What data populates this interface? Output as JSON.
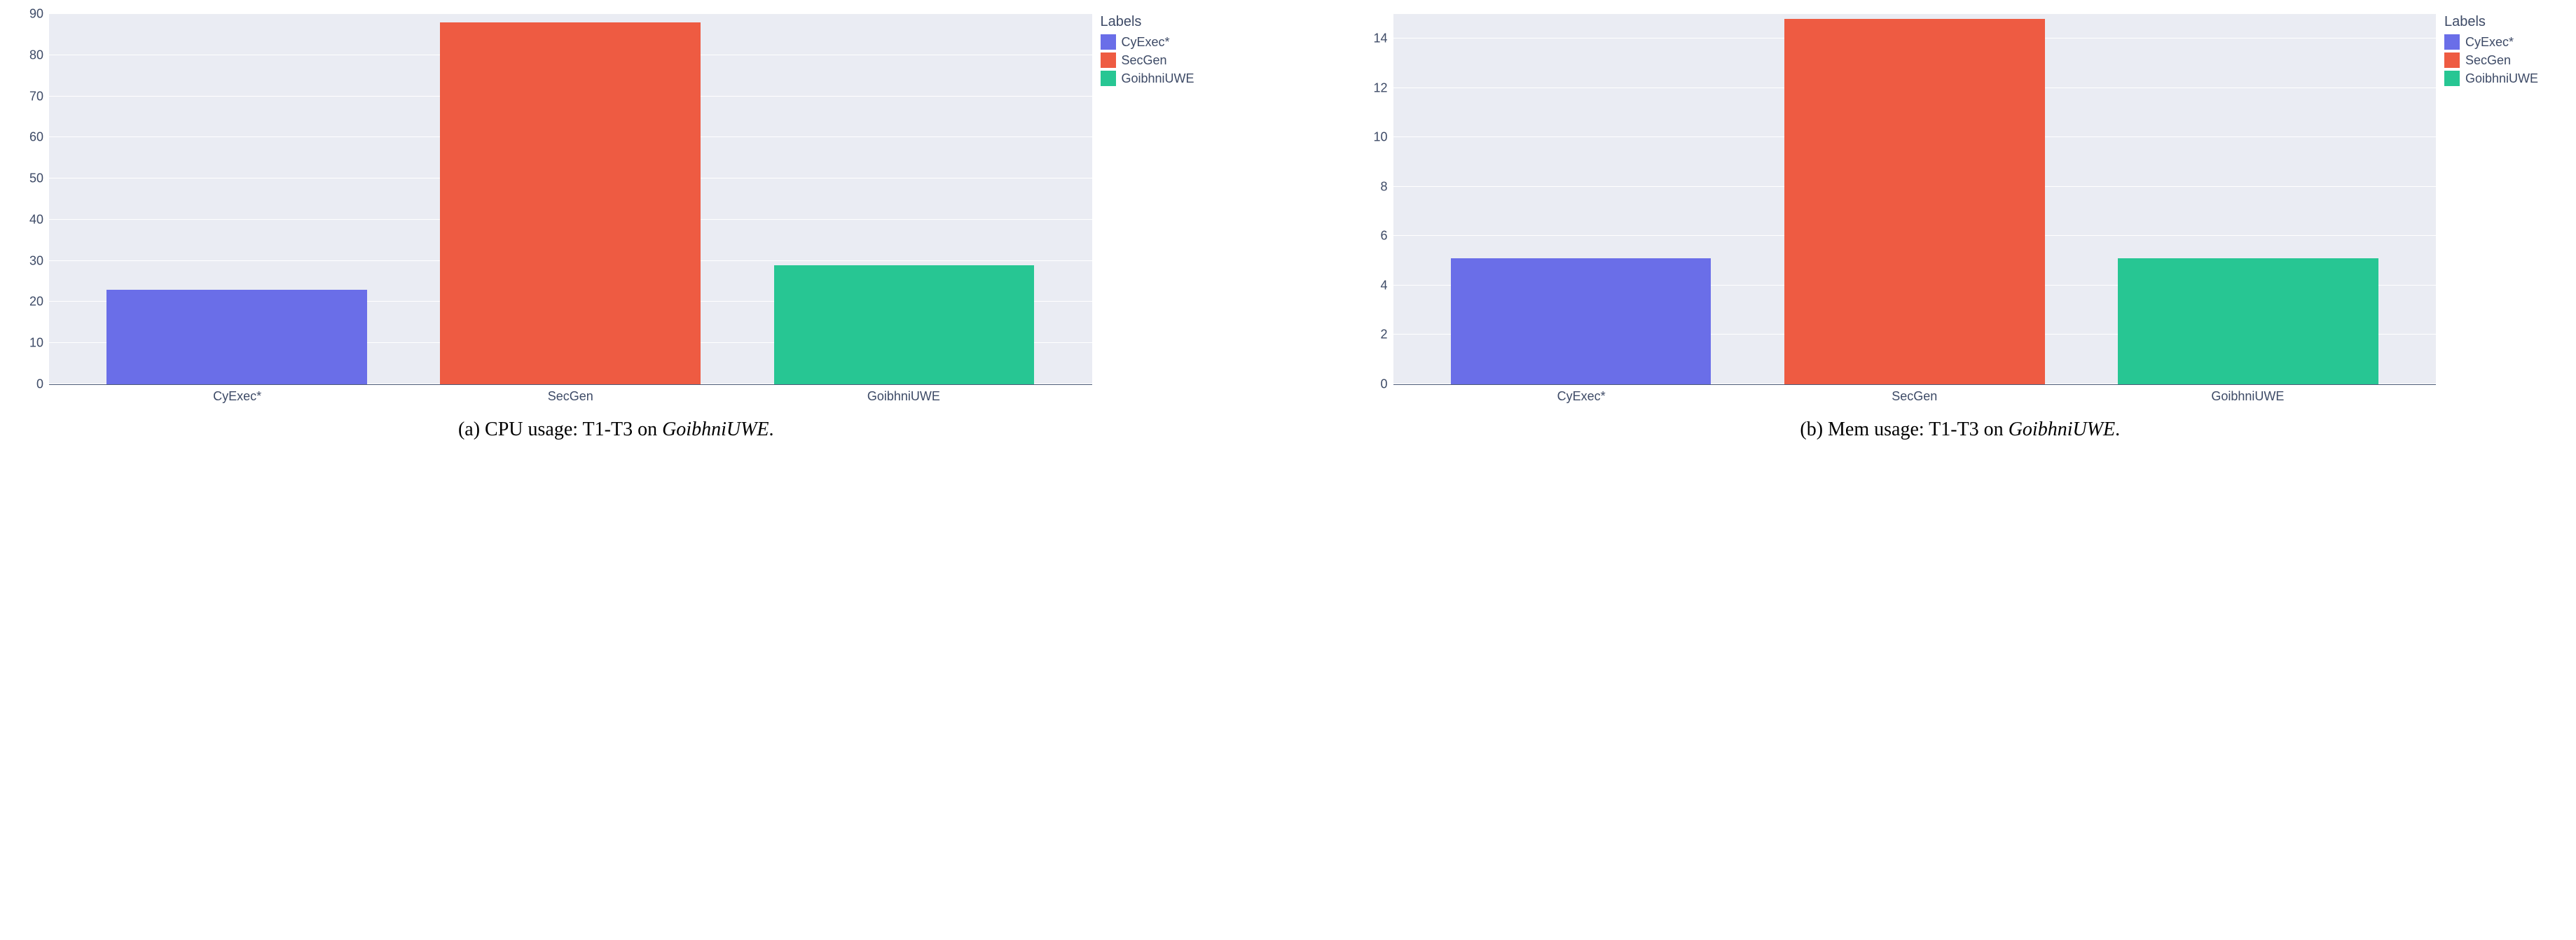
{
  "colors": {
    "plot_bg": "#eaecf3",
    "grid": "#ffffff",
    "axis_text": "#3d4a66",
    "caption_text": "#000000",
    "series": {
      "CyExec*": "#6a6ee8",
      "SecGen": "#ee5b42",
      "GoibhniUWE": "#27c693"
    }
  },
  "legend": {
    "title": "Labels",
    "items": [
      "CyExec*",
      "SecGen",
      "GoibhniUWE"
    ]
  },
  "panels": [
    {
      "id": "cpu",
      "type": "bar",
      "categories": [
        "CyExec*",
        "SecGen",
        "GoibhniUWE"
      ],
      "values": [
        23,
        88,
        29
      ],
      "ylim": [
        0,
        90
      ],
      "ytick_step": 10,
      "bar_width": 0.78,
      "label_fontsize": 18,
      "caption_prefix": "(a) CPU usage: T1-T3 on ",
      "caption_ital": "GoibhniUWE",
      "caption_suffix": "."
    },
    {
      "id": "mem",
      "type": "bar",
      "categories": [
        "CyExec*",
        "SecGen",
        "GoibhniUWE"
      ],
      "values": [
        5.1,
        14.8,
        5.1
      ],
      "ylim": [
        0,
        15
      ],
      "ytick_step": 2,
      "bar_width": 0.78,
      "label_fontsize": 18,
      "caption_prefix": "(b) Mem usage: T1-T3 on ",
      "caption_ital": "GoibhniUWE",
      "caption_suffix": "."
    }
  ]
}
